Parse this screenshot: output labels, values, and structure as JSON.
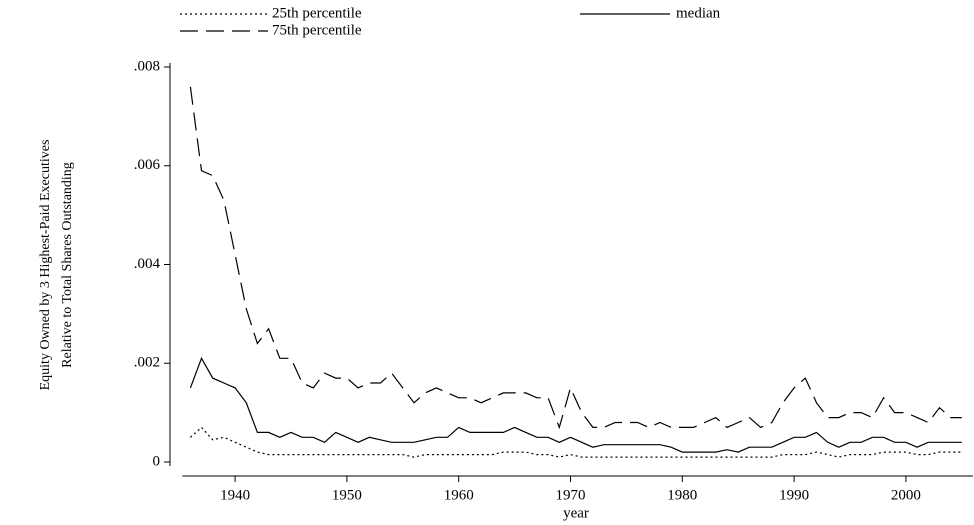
{
  "chart_data": {
    "type": "line",
    "xlabel": "year",
    "ylabel": [
      "Equity Owned by 3 Highest-Paid Executives",
      "Relative to Total Shares Outstanding"
    ],
    "x": [
      1936,
      1937,
      1938,
      1939,
      1940,
      1941,
      1942,
      1943,
      1944,
      1945,
      1946,
      1947,
      1948,
      1949,
      1950,
      1951,
      1952,
      1953,
      1954,
      1955,
      1956,
      1957,
      1958,
      1959,
      1960,
      1961,
      1962,
      1963,
      1964,
      1965,
      1966,
      1967,
      1968,
      1969,
      1970,
      1971,
      1972,
      1973,
      1974,
      1975,
      1976,
      1977,
      1978,
      1979,
      1980,
      1981,
      1982,
      1983,
      1984,
      1985,
      1986,
      1987,
      1988,
      1989,
      1990,
      1991,
      1992,
      1993,
      1994,
      1995,
      1996,
      1997,
      1998,
      1999,
      2000,
      2001,
      2002,
      2003,
      2004,
      2005
    ],
    "series": [
      {
        "name": "25th percentile",
        "color": "#000000",
        "dash": "2,3",
        "values": [
          0.0005,
          0.0007,
          0.00045,
          0.0005,
          0.0004,
          0.0003,
          0.0002,
          0.00015,
          0.00015,
          0.00015,
          0.00015,
          0.00015,
          0.00015,
          0.00015,
          0.00015,
          0.00015,
          0.00015,
          0.00015,
          0.00015,
          0.00015,
          0.0001,
          0.00015,
          0.00015,
          0.00015,
          0.00015,
          0.00015,
          0.00015,
          0.00015,
          0.0002,
          0.0002,
          0.0002,
          0.00015,
          0.00015,
          0.0001,
          0.00015,
          0.0001,
          0.0001,
          0.0001,
          0.0001,
          0.0001,
          0.0001,
          0.0001,
          0.0001,
          0.0001,
          0.0001,
          0.0001,
          0.0001,
          0.0001,
          0.0001,
          0.0001,
          0.0001,
          0.0001,
          0.0001,
          0.00015,
          0.00015,
          0.00015,
          0.0002,
          0.00015,
          0.0001,
          0.00015,
          0.00015,
          0.00015,
          0.0002,
          0.0002,
          0.0002,
          0.00015,
          0.00015,
          0.0002,
          0.0002,
          0.0002
        ]
      },
      {
        "name": "median",
        "color": "#000000",
        "dash": "none",
        "values": [
          0.0015,
          0.0021,
          0.0017,
          0.0016,
          0.0015,
          0.0012,
          0.0006,
          0.0006,
          0.0005,
          0.0006,
          0.0005,
          0.0005,
          0.0004,
          0.0006,
          0.0005,
          0.0004,
          0.0005,
          0.00045,
          0.0004,
          0.0004,
          0.0004,
          0.00045,
          0.0005,
          0.0005,
          0.0007,
          0.0006,
          0.0006,
          0.0006,
          0.0006,
          0.0007,
          0.0006,
          0.0005,
          0.0005,
          0.0004,
          0.0005,
          0.0004,
          0.0003,
          0.00035,
          0.00035,
          0.00035,
          0.00035,
          0.00035,
          0.00035,
          0.0003,
          0.0002,
          0.0002,
          0.0002,
          0.0002,
          0.00025,
          0.0002,
          0.0003,
          0.0003,
          0.0003,
          0.0004,
          0.0005,
          0.0005,
          0.0006,
          0.0004,
          0.0003,
          0.0004,
          0.0004,
          0.0005,
          0.0005,
          0.0004,
          0.0004,
          0.0003,
          0.0004,
          0.0004,
          0.0004,
          0.0004
        ]
      },
      {
        "name": "75th percentile",
        "color": "#000000",
        "dash": "18,8",
        "values": [
          0.0076,
          0.0059,
          0.0058,
          0.0053,
          0.0042,
          0.0031,
          0.0024,
          0.0027,
          0.0021,
          0.0021,
          0.0016,
          0.0015,
          0.0018,
          0.0017,
          0.0017,
          0.0015,
          0.0016,
          0.0016,
          0.0018,
          0.0015,
          0.0012,
          0.0014,
          0.0015,
          0.0014,
          0.0013,
          0.0013,
          0.0012,
          0.0013,
          0.0014,
          0.0014,
          0.0014,
          0.0013,
          0.0013,
          0.0007,
          0.0015,
          0.001,
          0.0007,
          0.0007,
          0.0008,
          0.0008,
          0.0008,
          0.0007,
          0.0008,
          0.0007,
          0.0007,
          0.0007,
          0.0008,
          0.0009,
          0.0007,
          0.0008,
          0.0009,
          0.0007,
          0.0008,
          0.0012,
          0.0015,
          0.0017,
          0.0012,
          0.0009,
          0.0009,
          0.001,
          0.001,
          0.0009,
          0.0013,
          0.001,
          0.001,
          0.0009,
          0.0008,
          0.0011,
          0.0009,
          0.0009
        ]
      }
    ],
    "xlim": [
      1934,
      2006
    ],
    "xticks": [
      1940,
      1950,
      1960,
      1970,
      1980,
      1990,
      2000
    ],
    "ylim": [
      0,
      0.008
    ],
    "yticks": [
      0,
      {
        "value": 0.002,
        "label": ".002"
      },
      {
        "value": 0.004,
        "label": ".004"
      },
      {
        "value": 0.006,
        "label": ".006"
      },
      {
        "value": 0.008,
        "label": ".008"
      }
    ],
    "grid": false
  }
}
